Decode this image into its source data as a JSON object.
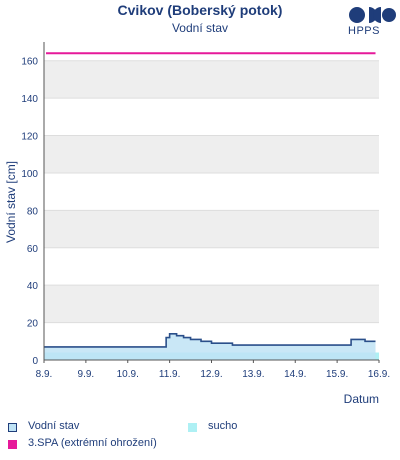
{
  "header": {
    "title": "Cvikov (Boberský potok)",
    "subtitle": "Vodní stav",
    "logo_text": "HPPS"
  },
  "colors": {
    "spa3": "#e6199a",
    "water_line": "#2a4f8a",
    "water_fill": "#bfe3f5",
    "sucho": "#aef0f4",
    "band_gray": "#eeeeee",
    "text": "#1f3d7a"
  },
  "chart_data": {
    "type": "area",
    "ylabel": "Vodní stav [cm]",
    "xlabel": "Datum",
    "ylim": [
      0,
      170
    ],
    "yticks": [
      0,
      20,
      40,
      60,
      80,
      100,
      120,
      140,
      160
    ],
    "xlim": [
      "2024-09-08",
      "2024-09-16"
    ],
    "xtick_labels": [
      "8.9.",
      "9.9.",
      "10.9.",
      "11.9.",
      "12.9.",
      "13.9.",
      "14.9.",
      "15.9.",
      "16.9."
    ],
    "grid": true,
    "legend_position": "bottom",
    "series": [
      {
        "name": "Vodní stav",
        "x": [
          "2024-09-08 00:00",
          "2024-09-08 06:00",
          "2024-09-08 12:00",
          "2024-09-09 00:00",
          "2024-09-10 00:00",
          "2024-09-10 20:00",
          "2024-09-10 22:00",
          "2024-09-11 00:00",
          "2024-09-11 04:00",
          "2024-09-11 08:00",
          "2024-09-11 12:00",
          "2024-09-11 18:00",
          "2024-09-12 00:00",
          "2024-09-12 12:00",
          "2024-09-13 00:00",
          "2024-09-13 12:00",
          "2024-09-14 00:00",
          "2024-09-14 12:00",
          "2024-09-15 00:00",
          "2024-09-15 06:00",
          "2024-09-15 08:00",
          "2024-09-15 16:00",
          "2024-09-15 22:00"
        ],
        "y": [
          7,
          7,
          7,
          7,
          7,
          7,
          12,
          14,
          13,
          12,
          11,
          10,
          9,
          8,
          8,
          8,
          8,
          8,
          8,
          8,
          11,
          10,
          10
        ]
      },
      {
        "name": "sucho",
        "y": 4
      },
      {
        "name": "3.SPA (extrémní ohrožení)",
        "y": 164
      }
    ]
  }
}
